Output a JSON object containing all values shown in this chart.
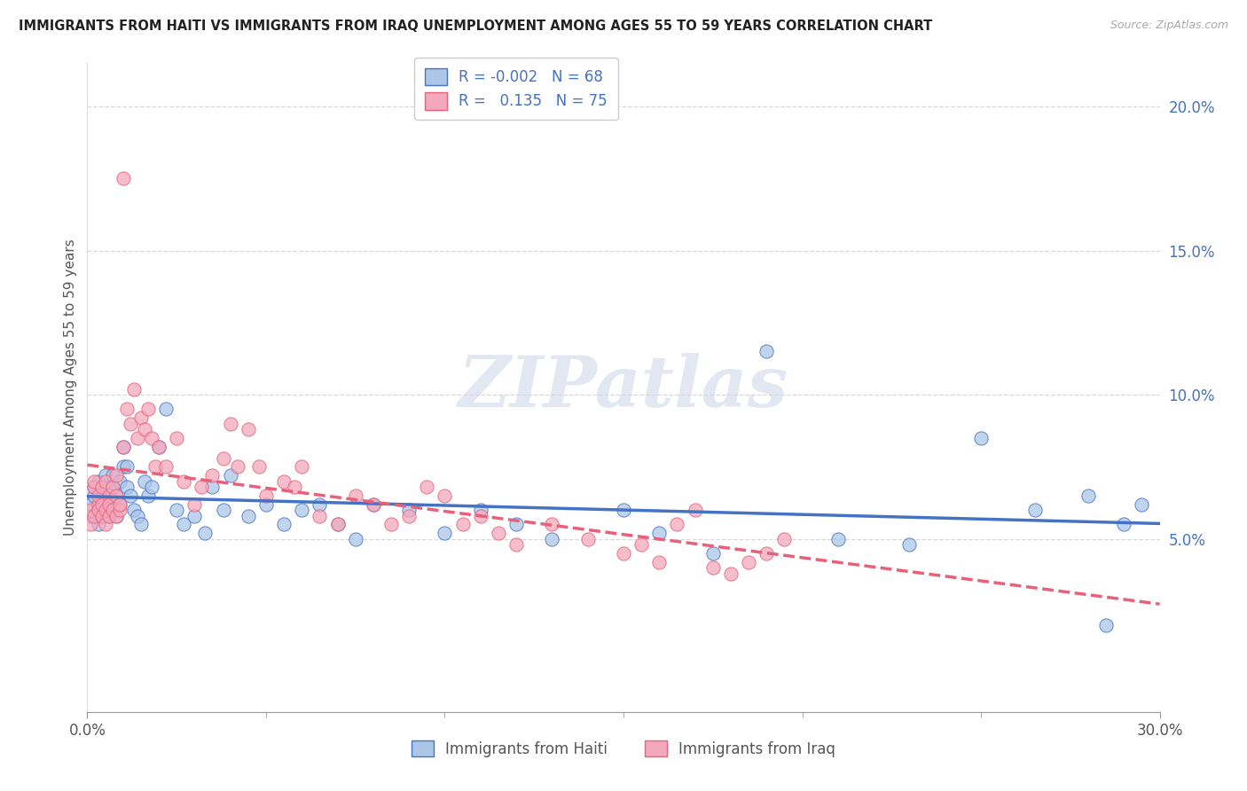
{
  "title": "IMMIGRANTS FROM HAITI VS IMMIGRANTS FROM IRAQ UNEMPLOYMENT AMONG AGES 55 TO 59 YEARS CORRELATION CHART",
  "source": "Source: ZipAtlas.com",
  "ylabel": "Unemployment Among Ages 55 to 59 years",
  "xlabel_haiti": "Immigrants from Haiti",
  "xlabel_iraq": "Immigrants from Iraq",
  "xlim": [
    0.0,
    0.3
  ],
  "ylim": [
    -0.01,
    0.215
  ],
  "xticks": [
    0.0,
    0.3
  ],
  "xtick_labels": [
    "0.0%",
    "30.0%"
  ],
  "ytick_labels": [
    "5.0%",
    "10.0%",
    "15.0%",
    "20.0%"
  ],
  "yticks": [
    0.05,
    0.1,
    0.15,
    0.2
  ],
  "haiti_R": -0.002,
  "haiti_N": 68,
  "iraq_R": 0.135,
  "iraq_N": 75,
  "haiti_color": "#adc6e8",
  "iraq_color": "#f4a8bc",
  "haiti_line_color": "#4472c4",
  "iraq_line_color": "#e8607a",
  "background_color": "#ffffff",
  "watermark": "ZIPatlas",
  "haiti_x": [
    0.001,
    0.001,
    0.002,
    0.002,
    0.003,
    0.003,
    0.003,
    0.004,
    0.004,
    0.004,
    0.005,
    0.005,
    0.005,
    0.006,
    0.006,
    0.006,
    0.007,
    0.007,
    0.007,
    0.008,
    0.008,
    0.009,
    0.009,
    0.01,
    0.01,
    0.011,
    0.011,
    0.012,
    0.013,
    0.014,
    0.015,
    0.016,
    0.017,
    0.018,
    0.02,
    0.022,
    0.025,
    0.027,
    0.03,
    0.033,
    0.035,
    0.038,
    0.04,
    0.045,
    0.05,
    0.055,
    0.06,
    0.065,
    0.07,
    0.075,
    0.08,
    0.09,
    0.1,
    0.11,
    0.12,
    0.13,
    0.15,
    0.16,
    0.175,
    0.19,
    0.21,
    0.23,
    0.25,
    0.265,
    0.28,
    0.285,
    0.29,
    0.295
  ],
  "haiti_y": [
    0.062,
    0.058,
    0.065,
    0.068,
    0.06,
    0.055,
    0.07,
    0.058,
    0.062,
    0.067,
    0.063,
    0.068,
    0.072,
    0.058,
    0.06,
    0.065,
    0.06,
    0.068,
    0.072,
    0.058,
    0.065,
    0.07,
    0.062,
    0.082,
    0.075,
    0.068,
    0.075,
    0.065,
    0.06,
    0.058,
    0.055,
    0.07,
    0.065,
    0.068,
    0.082,
    0.095,
    0.06,
    0.055,
    0.058,
    0.052,
    0.068,
    0.06,
    0.072,
    0.058,
    0.062,
    0.055,
    0.06,
    0.062,
    0.055,
    0.05,
    0.062,
    0.06,
    0.052,
    0.06,
    0.055,
    0.05,
    0.06,
    0.052,
    0.045,
    0.115,
    0.05,
    0.048,
    0.085,
    0.06,
    0.065,
    0.02,
    0.055,
    0.062
  ],
  "iraq_x": [
    0.001,
    0.001,
    0.002,
    0.002,
    0.002,
    0.003,
    0.003,
    0.003,
    0.004,
    0.004,
    0.004,
    0.005,
    0.005,
    0.005,
    0.006,
    0.006,
    0.006,
    0.007,
    0.007,
    0.008,
    0.008,
    0.008,
    0.009,
    0.009,
    0.01,
    0.01,
    0.011,
    0.012,
    0.013,
    0.014,
    0.015,
    0.016,
    0.017,
    0.018,
    0.019,
    0.02,
    0.022,
    0.025,
    0.027,
    0.03,
    0.032,
    0.035,
    0.038,
    0.04,
    0.042,
    0.045,
    0.048,
    0.05,
    0.055,
    0.058,
    0.06,
    0.065,
    0.07,
    0.075,
    0.08,
    0.085,
    0.09,
    0.095,
    0.1,
    0.105,
    0.11,
    0.115,
    0.12,
    0.13,
    0.14,
    0.15,
    0.155,
    0.16,
    0.165,
    0.17,
    0.175,
    0.18,
    0.185,
    0.19,
    0.195
  ],
  "iraq_y": [
    0.06,
    0.055,
    0.068,
    0.058,
    0.07,
    0.062,
    0.06,
    0.065,
    0.058,
    0.062,
    0.068,
    0.06,
    0.055,
    0.07,
    0.058,
    0.065,
    0.062,
    0.06,
    0.068,
    0.058,
    0.065,
    0.072,
    0.06,
    0.062,
    0.175,
    0.082,
    0.095,
    0.09,
    0.102,
    0.085,
    0.092,
    0.088,
    0.095,
    0.085,
    0.075,
    0.082,
    0.075,
    0.085,
    0.07,
    0.062,
    0.068,
    0.072,
    0.078,
    0.09,
    0.075,
    0.088,
    0.075,
    0.065,
    0.07,
    0.068,
    0.075,
    0.058,
    0.055,
    0.065,
    0.062,
    0.055,
    0.058,
    0.068,
    0.065,
    0.055,
    0.058,
    0.052,
    0.048,
    0.055,
    0.05,
    0.045,
    0.048,
    0.042,
    0.055,
    0.06,
    0.04,
    0.038,
    0.042,
    0.045,
    0.05
  ]
}
